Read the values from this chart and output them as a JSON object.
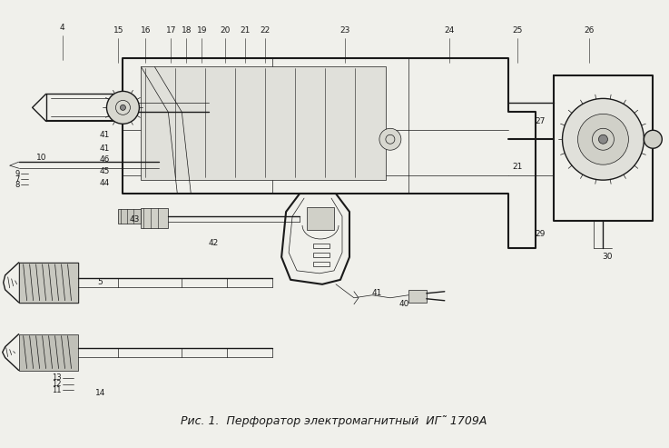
{
  "bg_color": "#f0f0eb",
  "line_color": "#1a1a1a",
  "label_color": "#1a1a1a",
  "caption": "Рис. 1.  Перфоратор электромагнитный  ИГ˜ 1709А",
  "caption_fontsize": 9,
  "fig_width": 7.37,
  "fig_height": 4.93,
  "dpi": 100
}
